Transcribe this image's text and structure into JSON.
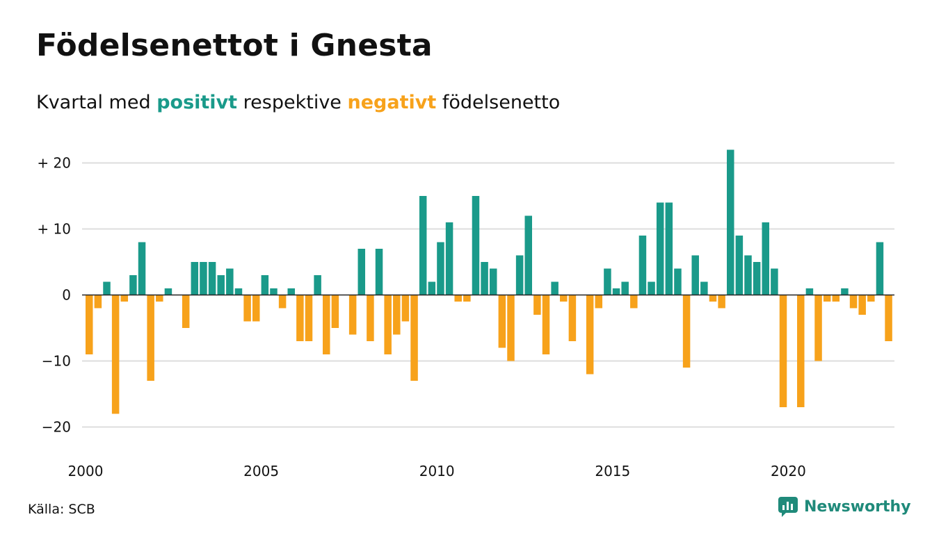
{
  "header": {
    "title": "Födelsenettot i Gnesta",
    "subtitle_prefix": "Kvartal med",
    "subtitle_positive": "positivt",
    "subtitle_middle": "respektive",
    "subtitle_negative": "negativt",
    "subtitle_suffix": "födelsenetto"
  },
  "footer": {
    "source": "Källa: SCB",
    "brand": "Newsworthy",
    "brand_icon": "newsworthy-logo-icon"
  },
  "colors": {
    "positive": "#1a9a8a",
    "negative": "#f7a21b",
    "grid": "#dddddd",
    "zero_line": "#222222",
    "brand": "#1f8a7a"
  },
  "chart_data": {
    "type": "bar",
    "xlabel": "",
    "ylabel": "",
    "ylim": [
      -22,
      22
    ],
    "y_ticks": [
      {
        "value": 20,
        "label": "+ 20"
      },
      {
        "value": 10,
        "label": "+ 10"
      },
      {
        "value": 0,
        "label": "0"
      },
      {
        "value": -10,
        "label": "−10"
      },
      {
        "value": -20,
        "label": "−20"
      }
    ],
    "x_ticks": [
      "2000",
      "2005",
      "2010",
      "2015",
      "2020"
    ],
    "start_year": 2000,
    "grid": true,
    "legend": "none",
    "values": [
      -9,
      -2,
      2,
      -18,
      -1,
      3,
      8,
      -13,
      -1,
      1,
      0,
      -5,
      5,
      5,
      5,
      3,
      4,
      1,
      -4,
      -4,
      3,
      1,
      -2,
      1,
      -7,
      -7,
      3,
      -9,
      -5,
      0,
      -6,
      7,
      -7,
      7,
      -9,
      -6,
      -4,
      -13,
      15,
      2,
      8,
      11,
      -1,
      -1,
      15,
      5,
      4,
      -8,
      -10,
      6,
      12,
      -3,
      -9,
      2,
      -1,
      -7,
      0,
      -12,
      -2,
      4,
      1,
      2,
      -2,
      9,
      2,
      14,
      14,
      4,
      -11,
      6,
      2,
      -1,
      -2,
      22,
      9,
      6,
      5,
      11,
      4,
      -17,
      0,
      -17,
      1,
      -10,
      -1,
      -1,
      1,
      -2,
      -3,
      -1,
      8,
      -7
    ]
  }
}
